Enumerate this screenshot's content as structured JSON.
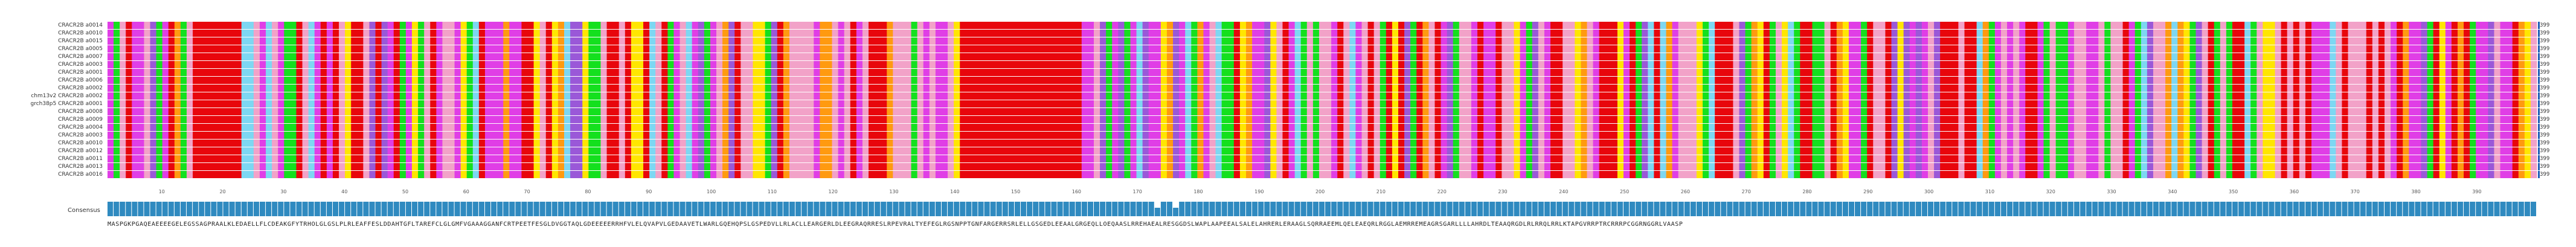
{
  "viewer": {
    "row_labels": [
      "CRACR2B a0014",
      "CRACR2B a0010",
      "CRACR2B a0015",
      "CRACR2B a0005",
      "CRACR2B a0007",
      "CRACR2B a0003",
      "CRACR2B a0001",
      "CRACR2B a0006",
      "CRACR2B a0002",
      "chm13v2 CRACR2B a0002",
      "grch38p5 CRACR2B a0001",
      "CRACR2B a0008",
      "CRACR2B a0009",
      "CRACR2B a0004",
      "CRACR2B a0003",
      "CRACR2B a0010",
      "CRACR2B a0012",
      "CRACR2B a0011",
      "CRACR2B a0013",
      "CRACR2B a0016"
    ],
    "row_end_numbers": [
      "399",
      "399",
      "399",
      "399",
      "399",
      "399",
      "399",
      "399",
      "399",
      "399",
      "399",
      "399",
      "399",
      "399",
      "399",
      "399",
      "399",
      "399",
      "399",
      "399"
    ],
    "ruler_ticks": [
      "10",
      "20",
      "30",
      "40",
      "50",
      "60",
      "70",
      "80",
      "90",
      "100",
      "110",
      "120",
      "130",
      "140",
      "150",
      "160",
      "170",
      "180",
      "190",
      "200",
      "210",
      "220",
      "230",
      "240",
      "250",
      "260",
      "270",
      "280",
      "290",
      "300",
      "310",
      "320",
      "330",
      "340",
      "350",
      "360",
      "370",
      "380",
      "390"
    ],
    "consensus_label": "Consensus",
    "consensus_sequence": "MASPGKPGAQEAEEEEGELEGSSAGPRAALKLEDAELLFLCDEAKGFYTRHOLGLGSLPLRLEAFFESLDDAHTGFLTAREFCLGLGMFVGAAAGGANFCRTPEETFESGLDVGGTAQLGDEEEEERRHFVLELQVAPVLGEDAAVETLWARLGQEHQPSLGSPEDVLLRLACLLEARGERLDLEEGRAQRRESLRPEVRALTYEFEGLRGSNPPTGNFARGERRSRLELLGSGEDLEEAALGRGEQLLOEQAASLRREHAEALRESGGDSLWAPLAAPEEALSALELAHRERLERAAGLSQRRAEEMLQELEAEQRLRGGLAEMRREMEAGRSGARLLLLAHRDLTEAAQRGDLRLRRQLRRLKTAPGVRRPTRCRRRPCGGRNGGRLVAASP",
    "colors": {
      "red": "#e8060c",
      "magenta": "#e03ee6",
      "pink": "#f2a2c8",
      "green": "#14e01e",
      "yellow": "#ffe600",
      "orange": "#ff9a10",
      "blue": "#2f8fd6",
      "purple": "#9a58d8",
      "lightblue": "#7dd7f2",
      "dark_green": "#159a2a",
      "consensus_bar": "#2f8ac0",
      "end_marker": "#1e5fb8"
    }
  }
}
